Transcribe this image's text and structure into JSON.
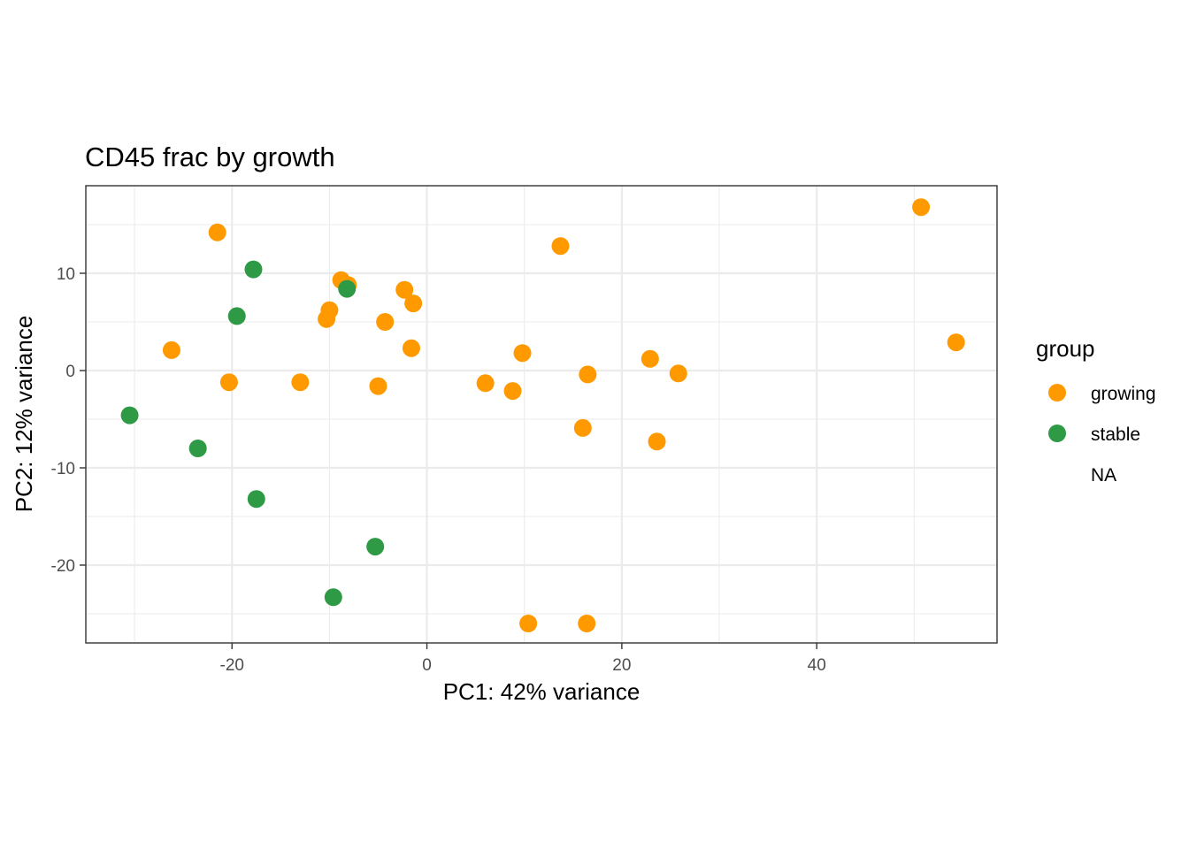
{
  "chart_data": {
    "type": "scatter",
    "title": "CD45 frac by growth",
    "xlabel": "PC1: 42% variance",
    "ylabel": "PC2: 12% variance",
    "xlim": [
      -35,
      58.5
    ],
    "ylim": [
      -28,
      19
    ],
    "x_ticks": [
      -20,
      0,
      20,
      40
    ],
    "y_ticks": [
      -20,
      -10,
      0,
      10
    ],
    "x_tick_labels": [
      "-20",
      "0",
      "20",
      "40"
    ],
    "y_tick_labels": [
      "-20",
      "-10",
      "0",
      "10"
    ],
    "grid": true,
    "legend": {
      "title": "group",
      "position": "right",
      "entries": [
        "growing",
        "stable",
        "NA"
      ]
    },
    "series": [
      {
        "name": "growing",
        "color": "#FF9900",
        "points": [
          [
            -21.5,
            14.2
          ],
          [
            -26.2,
            2.1
          ],
          [
            -20.3,
            -1.2
          ],
          [
            -13.0,
            -1.2
          ],
          [
            -8.8,
            9.3
          ],
          [
            -8.1,
            8.8
          ],
          [
            -10.0,
            6.2
          ],
          [
            -10.3,
            5.3
          ],
          [
            -2.3,
            8.3
          ],
          [
            -1.4,
            6.9
          ],
          [
            -4.3,
            5.0
          ],
          [
            -1.6,
            2.3
          ],
          [
            -5.0,
            -1.6
          ],
          [
            6.0,
            -1.3
          ],
          [
            8.8,
            -2.1
          ],
          [
            9.8,
            1.8
          ],
          [
            13.7,
            12.8
          ],
          [
            16.5,
            -0.4
          ],
          [
            16.0,
            -5.9
          ],
          [
            22.9,
            1.2
          ],
          [
            25.8,
            -0.3
          ],
          [
            23.6,
            -7.3
          ],
          [
            10.4,
            -26.0
          ],
          [
            16.4,
            -26.0
          ],
          [
            50.7,
            16.8
          ],
          [
            54.3,
            2.9
          ]
        ]
      },
      {
        "name": "stable",
        "color": "#2F9A45",
        "points": [
          [
            -17.8,
            10.4
          ],
          [
            -19.5,
            5.6
          ],
          [
            -8.2,
            8.4
          ],
          [
            -30.5,
            -4.6
          ],
          [
            -23.5,
            -8.0
          ],
          [
            -17.5,
            -13.2
          ],
          [
            -5.3,
            -18.1
          ],
          [
            -9.6,
            -23.3
          ]
        ]
      },
      {
        "name": "NA",
        "color": "none",
        "points": []
      }
    ]
  }
}
